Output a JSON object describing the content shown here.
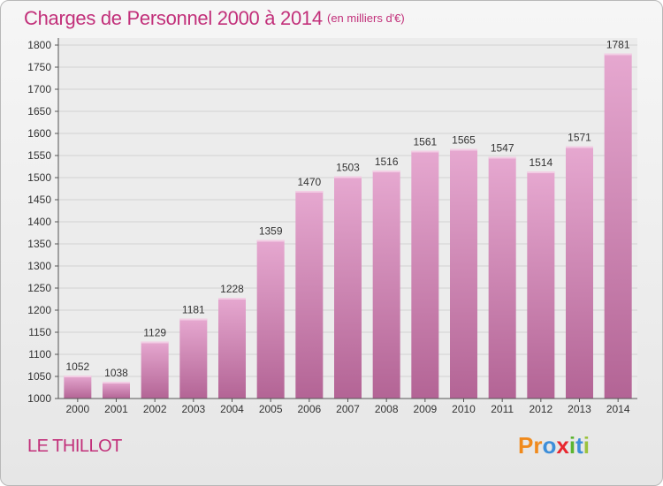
{
  "header": {
    "title": "Charges de Personnel 2000 à 2014",
    "unit": "(en milliers d'€)"
  },
  "footer": {
    "commune": "LE THILLOT",
    "brand": {
      "letters": [
        "P",
        "r",
        "o",
        "x",
        "i",
        "t",
        "i"
      ],
      "colors": [
        "#f08a1c",
        "#f08a1c",
        "#3d8ed9",
        "#e8272f",
        "#5cb531",
        "#3d8ed9",
        "#9bc23c"
      ]
    }
  },
  "colors": {
    "bar_top": "#e6a8d0",
    "bar_bottom": "#b36495",
    "text": "#c2307a"
  },
  "chart_data": {
    "type": "bar",
    "title": "Charges de Personnel 2000 à 2014",
    "subtitle": "(en milliers d'€)",
    "categories": [
      "2000",
      "2001",
      "2002",
      "2003",
      "2004",
      "2005",
      "2006",
      "2007",
      "2008",
      "2009",
      "2010",
      "2011",
      "2012",
      "2013",
      "2014"
    ],
    "values": [
      1052,
      1038,
      1129,
      1181,
      1228,
      1359,
      1470,
      1503,
      1516,
      1561,
      1565,
      1547,
      1514,
      1571,
      1781
    ],
    "ylim": [
      1000,
      1800
    ],
    "yticks": [
      1000,
      1050,
      1100,
      1150,
      1200,
      1250,
      1300,
      1350,
      1400,
      1450,
      1500,
      1550,
      1600,
      1650,
      1700,
      1750,
      1800
    ],
    "grid": true,
    "data_labels": true
  }
}
